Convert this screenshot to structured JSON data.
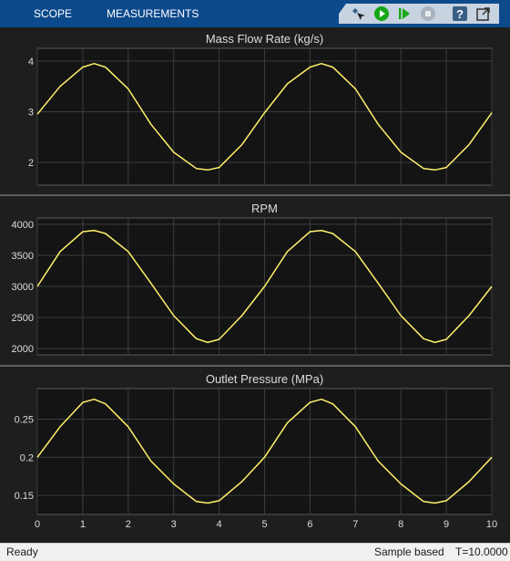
{
  "toolbar": {
    "tabs": [
      "SCOPE",
      "MEASUREMENTS"
    ],
    "icons": [
      "highlight-simulink-block-icon",
      "run-icon",
      "step-forward-icon",
      "stop-icon",
      "help-icon",
      "undock-icon"
    ]
  },
  "status": {
    "ready": "Ready",
    "mode": "Sample based",
    "time": "T=10.0000"
  },
  "colors": {
    "toolbar": "#0d4a8c",
    "axes_background": "#141414",
    "panel_background": "#1e1e1e",
    "grid": "#3c3c3c",
    "trace": "#fff26a",
    "text": "#dddddd",
    "run_green": "#17a817"
  },
  "x_axis": {
    "min": 0,
    "max": 10,
    "ticks": [
      0,
      1,
      2,
      3,
      4,
      5,
      6,
      7,
      8,
      9,
      10
    ]
  },
  "chart_data": [
    {
      "type": "line",
      "title": "Mass Flow Rate (kg/s)",
      "ylim": [
        1.55,
        4.25
      ],
      "yticks": [
        2,
        3,
        4
      ],
      "series": [
        {
          "x": [
            0,
            0.5,
            1,
            1.25,
            1.5,
            2,
            2.5,
            3,
            3.5,
            3.75,
            4,
            4.5,
            5,
            5.5,
            6,
            6.25,
            6.5,
            7,
            7.5,
            8,
            8.5,
            8.75,
            9,
            9.5,
            10
          ],
          "values": [
            2.95,
            3.5,
            3.88,
            3.95,
            3.88,
            3.45,
            2.75,
            2.2,
            1.88,
            1.85,
            1.9,
            2.35,
            2.98,
            3.55,
            3.88,
            3.95,
            3.88,
            3.45,
            2.75,
            2.2,
            1.88,
            1.85,
            1.9,
            2.35,
            2.98
          ]
        }
      ]
    },
    {
      "type": "line",
      "title": "RPM",
      "ylim": [
        1900,
        4100
      ],
      "yticks": [
        2000,
        2500,
        3000,
        3500,
        4000
      ],
      "series": [
        {
          "x": [
            0,
            0.5,
            1,
            1.25,
            1.5,
            2,
            2.5,
            3,
            3.5,
            3.75,
            4,
            4.5,
            5,
            5.5,
            6,
            6.25,
            6.5,
            7,
            7.5,
            8,
            8.5,
            8.75,
            9,
            9.5,
            10
          ],
          "values": [
            3000,
            3560,
            3880,
            3900,
            3850,
            3560,
            3050,
            2530,
            2160,
            2100,
            2150,
            2530,
            3000,
            3560,
            3880,
            3900,
            3850,
            3560,
            3050,
            2530,
            2160,
            2100,
            2150,
            2530,
            3000
          ]
        }
      ]
    },
    {
      "type": "line",
      "title": "Outlet Pressure (MPa)",
      "ylim": [
        0.125,
        0.29
      ],
      "yticks": [
        0.15,
        0.2,
        0.25
      ],
      "series": [
        {
          "x": [
            0,
            0.5,
            1,
            1.25,
            1.5,
            2,
            2.5,
            3,
            3.5,
            3.75,
            4,
            4.5,
            5,
            5.5,
            6,
            6.25,
            6.5,
            7,
            7.5,
            8,
            8.5,
            8.75,
            9,
            9.5,
            10
          ],
          "values": [
            0.2,
            0.24,
            0.272,
            0.276,
            0.27,
            0.24,
            0.195,
            0.165,
            0.142,
            0.14,
            0.143,
            0.168,
            0.2,
            0.245,
            0.272,
            0.276,
            0.27,
            0.24,
            0.195,
            0.165,
            0.142,
            0.14,
            0.143,
            0.168,
            0.2
          ]
        }
      ]
    }
  ]
}
